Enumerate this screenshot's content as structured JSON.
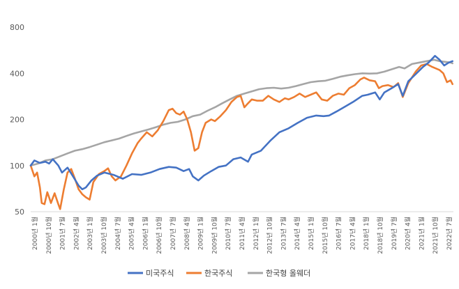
{
  "chart_data": {
    "type": "line",
    "title": "",
    "xlabel": "",
    "ylabel": "",
    "y_scale": "log",
    "ylim": [
      50,
      800
    ],
    "grid": false,
    "legend_position": "bottom",
    "y_ticks": [
      {
        "value": 800,
        "label": "800"
      },
      {
        "value": 400,
        "label": "400"
      },
      {
        "value": 200,
        "label": "200"
      },
      {
        "value": 100,
        "label": "100"
      },
      {
        "value": 50,
        "label": "50"
      }
    ],
    "x_tick_labels": [
      "2000년 1월",
      "2000년 10월",
      "2001년 7월",
      "2002년 4월",
      "2003년 1월",
      "2003년 10월",
      "2004년 7월",
      "2005년 4월",
      "2006년 1월",
      "2006년 10월",
      "2007년 7월",
      "2008년 4월",
      "2009년 1월",
      "2009년 10월",
      "2010년 7월",
      "2011년 4월",
      "2012년 1월",
      "2012년 10월",
      "2013년 7월",
      "2014년 4월",
      "2015년 1월",
      "2015년 10월",
      "2016년 7월",
      "2017년 4월",
      "2018년 1월",
      "2018년 10월",
      "2019년 7월",
      "2020년 4월",
      "2021년 1월",
      "2021년 10월",
      "2022년 7월"
    ],
    "series": [
      {
        "name": "미국주식",
        "color": "#4472C4",
        "points": [
          [
            2000.0,
            100
          ],
          [
            2000.2,
            108
          ],
          [
            2000.5,
            104
          ],
          [
            2000.8,
            106
          ],
          [
            2001.0,
            103
          ],
          [
            2001.2,
            110
          ],
          [
            2001.5,
            100
          ],
          [
            2001.7,
            90
          ],
          [
            2002.0,
            97
          ],
          [
            2002.3,
            85
          ],
          [
            2002.6,
            74
          ],
          [
            2002.8,
            70
          ],
          [
            2003.0,
            72
          ],
          [
            2003.3,
            80
          ],
          [
            2003.6,
            86
          ],
          [
            2004.0,
            90
          ],
          [
            2004.5,
            87
          ],
          [
            2005.0,
            82
          ],
          [
            2005.5,
            88
          ],
          [
            2006.0,
            87
          ],
          [
            2006.5,
            90
          ],
          [
            2007.0,
            95
          ],
          [
            2007.5,
            98
          ],
          [
            2007.9,
            97
          ],
          [
            2008.3,
            92
          ],
          [
            2008.6,
            95
          ],
          [
            2008.8,
            85
          ],
          [
            2009.1,
            80
          ],
          [
            2009.4,
            86
          ],
          [
            2009.8,
            92
          ],
          [
            2010.2,
            98
          ],
          [
            2010.6,
            100
          ],
          [
            2011.0,
            110
          ],
          [
            2011.4,
            113
          ],
          [
            2011.8,
            106
          ],
          [
            2012.0,
            118
          ],
          [
            2012.5,
            125
          ],
          [
            2013.0,
            145
          ],
          [
            2013.5,
            165
          ],
          [
            2014.0,
            175
          ],
          [
            2014.5,
            190
          ],
          [
            2015.0,
            205
          ],
          [
            2015.5,
            212
          ],
          [
            2015.9,
            210
          ],
          [
            2016.2,
            212
          ],
          [
            2016.6,
            225
          ],
          [
            2017.0,
            240
          ],
          [
            2017.5,
            260
          ],
          [
            2018.0,
            285
          ],
          [
            2018.3,
            290
          ],
          [
            2018.7,
            300
          ],
          [
            2018.95,
            270
          ],
          [
            2019.2,
            300
          ],
          [
            2019.6,
            320
          ],
          [
            2019.95,
            340
          ],
          [
            2020.2,
            285
          ],
          [
            2020.5,
            355
          ],
          [
            2020.9,
            395
          ],
          [
            2021.3,
            440
          ],
          [
            2021.6,
            470
          ],
          [
            2021.95,
            520
          ],
          [
            2022.2,
            490
          ],
          [
            2022.45,
            450
          ],
          [
            2022.7,
            470
          ],
          [
            2022.9,
            480
          ]
        ]
      },
      {
        "name": "한국주식",
        "color": "#ED7D31",
        "points": [
          [
            2000.0,
            100
          ],
          [
            2000.2,
            85
          ],
          [
            2000.35,
            90
          ],
          [
            2000.5,
            72
          ],
          [
            2000.6,
            57
          ],
          [
            2000.75,
            56
          ],
          [
            2000.9,
            67
          ],
          [
            2001.0,
            62
          ],
          [
            2001.1,
            57
          ],
          [
            2001.3,
            66
          ],
          [
            2001.5,
            56
          ],
          [
            2001.6,
            52
          ],
          [
            2001.8,
            70
          ],
          [
            2002.0,
            90
          ],
          [
            2002.2,
            95
          ],
          [
            2002.4,
            82
          ],
          [
            2002.6,
            70
          ],
          [
            2002.8,
            65
          ],
          [
            2003.0,
            62
          ],
          [
            2003.2,
            60
          ],
          [
            2003.4,
            78
          ],
          [
            2003.7,
            88
          ],
          [
            2004.0,
            92
          ],
          [
            2004.2,
            96
          ],
          [
            2004.4,
            85
          ],
          [
            2004.6,
            80
          ],
          [
            2004.9,
            85
          ],
          [
            2005.2,
            100
          ],
          [
            2005.5,
            120
          ],
          [
            2005.8,
            140
          ],
          [
            2006.0,
            150
          ],
          [
            2006.3,
            165
          ],
          [
            2006.6,
            155
          ],
          [
            2006.9,
            170
          ],
          [
            2007.2,
            195
          ],
          [
            2007.5,
            230
          ],
          [
            2007.7,
            235
          ],
          [
            2007.9,
            220
          ],
          [
            2008.1,
            215
          ],
          [
            2008.3,
            225
          ],
          [
            2008.5,
            200
          ],
          [
            2008.7,
            165
          ],
          [
            2008.9,
            125
          ],
          [
            2009.1,
            130
          ],
          [
            2009.3,
            165
          ],
          [
            2009.5,
            190
          ],
          [
            2009.8,
            200
          ],
          [
            2010.0,
            195
          ],
          [
            2010.3,
            210
          ],
          [
            2010.6,
            230
          ],
          [
            2010.9,
            260
          ],
          [
            2011.2,
            280
          ],
          [
            2011.4,
            285
          ],
          [
            2011.6,
            240
          ],
          [
            2011.8,
            255
          ],
          [
            2012.0,
            270
          ],
          [
            2012.3,
            265
          ],
          [
            2012.6,
            265
          ],
          [
            2012.9,
            285
          ],
          [
            2013.2,
            270
          ],
          [
            2013.5,
            260
          ],
          [
            2013.8,
            275
          ],
          [
            2014.0,
            270
          ],
          [
            2014.3,
            280
          ],
          [
            2014.6,
            295
          ],
          [
            2014.9,
            280
          ],
          [
            2015.2,
            290
          ],
          [
            2015.5,
            300
          ],
          [
            2015.8,
            270
          ],
          [
            2016.1,
            265
          ],
          [
            2016.4,
            285
          ],
          [
            2016.7,
            295
          ],
          [
            2017.0,
            290
          ],
          [
            2017.3,
            320
          ],
          [
            2017.6,
            335
          ],
          [
            2017.9,
            365
          ],
          [
            2018.1,
            375
          ],
          [
            2018.4,
            360
          ],
          [
            2018.7,
            355
          ],
          [
            2018.9,
            320
          ],
          [
            2019.1,
            330
          ],
          [
            2019.4,
            335
          ],
          [
            2019.7,
            325
          ],
          [
            2019.95,
            345
          ],
          [
            2020.2,
            280
          ],
          [
            2020.5,
            345
          ],
          [
            2020.9,
            410
          ],
          [
            2021.2,
            450
          ],
          [
            2021.5,
            460
          ],
          [
            2021.8,
            440
          ],
          [
            2022.0,
            430
          ],
          [
            2022.2,
            420
          ],
          [
            2022.4,
            400
          ],
          [
            2022.6,
            350
          ],
          [
            2022.8,
            360
          ],
          [
            2022.9,
            340
          ]
        ]
      },
      {
        "name": "한국형 올웨더",
        "color": "#A5A5A5",
        "points": [
          [
            2000.0,
            100
          ],
          [
            2000.4,
            103
          ],
          [
            2000.8,
            108
          ],
          [
            2001.2,
            110
          ],
          [
            2001.6,
            115
          ],
          [
            2002.0,
            120
          ],
          [
            2002.4,
            125
          ],
          [
            2002.8,
            128
          ],
          [
            2003.2,
            132
          ],
          [
            2003.6,
            137
          ],
          [
            2004.0,
            142
          ],
          [
            2004.4,
            146
          ],
          [
            2004.8,
            150
          ],
          [
            2005.2,
            156
          ],
          [
            2005.6,
            162
          ],
          [
            2006.0,
            167
          ],
          [
            2006.4,
            172
          ],
          [
            2006.8,
            178
          ],
          [
            2007.2,
            185
          ],
          [
            2007.6,
            190
          ],
          [
            2008.0,
            193
          ],
          [
            2008.4,
            200
          ],
          [
            2008.8,
            210
          ],
          [
            2009.2,
            215
          ],
          [
            2009.6,
            228
          ],
          [
            2010.0,
            240
          ],
          [
            2010.4,
            255
          ],
          [
            2010.8,
            270
          ],
          [
            2011.2,
            285
          ],
          [
            2011.6,
            295
          ],
          [
            2012.0,
            305
          ],
          [
            2012.4,
            315
          ],
          [
            2012.8,
            320
          ],
          [
            2013.2,
            322
          ],
          [
            2013.6,
            318
          ],
          [
            2014.0,
            322
          ],
          [
            2014.4,
            330
          ],
          [
            2014.8,
            340
          ],
          [
            2015.2,
            350
          ],
          [
            2015.6,
            355
          ],
          [
            2016.0,
            358
          ],
          [
            2016.4,
            368
          ],
          [
            2016.8,
            380
          ],
          [
            2017.2,
            388
          ],
          [
            2017.6,
            395
          ],
          [
            2018.0,
            400
          ],
          [
            2018.4,
            398
          ],
          [
            2018.8,
            400
          ],
          [
            2019.2,
            410
          ],
          [
            2019.6,
            425
          ],
          [
            2020.0,
            440
          ],
          [
            2020.3,
            430
          ],
          [
            2020.7,
            460
          ],
          [
            2021.1,
            470
          ],
          [
            2021.5,
            480
          ],
          [
            2021.9,
            490
          ],
          [
            2022.2,
            480
          ],
          [
            2022.5,
            475
          ],
          [
            2022.8,
            470
          ],
          [
            2022.9,
            465
          ]
        ]
      }
    ]
  }
}
